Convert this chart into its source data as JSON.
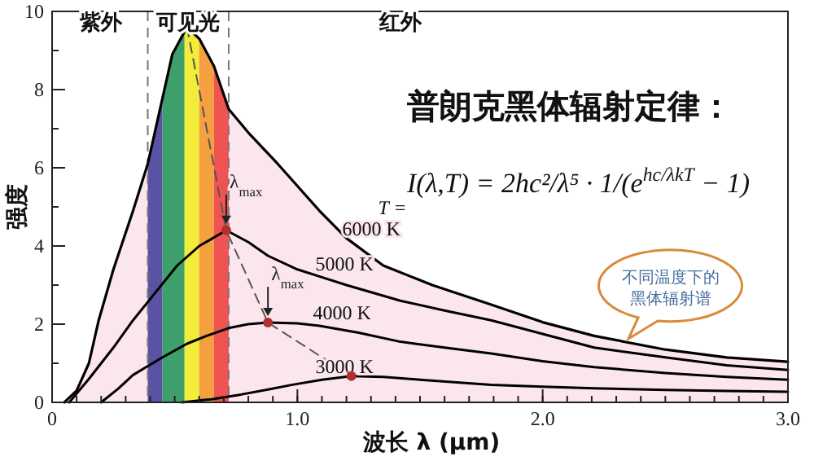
{
  "chart_data": {
    "type": "line",
    "title": "普朗克黑体辐射定律：",
    "xlabel": "波长 λ (μm)",
    "ylabel": "强度",
    "legend_title": "T =",
    "xlim": [
      0,
      3.0
    ],
    "xticks": [
      0,
      {
        "value": 1,
        "label": "1.0"
      },
      {
        "value": 2,
        "label": "2.0"
      },
      {
        "value": 3,
        "label": "3.0"
      }
    ],
    "ylim": [
      0,
      10
    ],
    "yticks": [
      0,
      2,
      4,
      6,
      8,
      10
    ],
    "series": [
      {
        "name": "6000 K",
        "type": "area",
        "color": "#000000",
        "x": [
          0.05,
          0.1,
          0.15,
          0.19,
          0.25,
          0.33,
          0.39,
          0.44,
          0.49,
          0.55,
          0.6,
          0.66,
          0.72,
          0.8,
          0.92,
          1.09,
          1.2,
          1.35,
          1.55,
          1.79,
          2.0,
          2.21,
          2.5,
          2.75,
          3.0
        ],
        "values": [
          0,
          0.3,
          1.0,
          2.1,
          3.4,
          4.9,
          6.1,
          7.5,
          8.9,
          9.6,
          9.3,
          8.6,
          7.5,
          6.9,
          6.1,
          4.9,
          4.2,
          3.5,
          3.0,
          2.5,
          2.05,
          1.7,
          1.35,
          1.15,
          1.04
        ]
      },
      {
        "name": "5000 K",
        "type": "line",
        "color": "#000000",
        "x": [
          0.07,
          0.15,
          0.25,
          0.33,
          0.42,
          0.51,
          0.6,
          0.71,
          0.8,
          0.88,
          1.0,
          1.1,
          1.2,
          1.42,
          1.6,
          1.79,
          2.0,
          2.21,
          2.5,
          2.75,
          3.0
        ],
        "values": [
          0,
          0.6,
          1.4,
          2.1,
          2.8,
          3.5,
          4.0,
          4.4,
          4.1,
          3.75,
          3.4,
          3.2,
          3.0,
          2.6,
          2.35,
          2.1,
          1.75,
          1.4,
          1.15,
          0.95,
          0.83
        ]
      },
      {
        "name": "4000 K",
        "type": "line",
        "color": "#000000",
        "x": [
          0.2,
          0.27,
          0.33,
          0.45,
          0.55,
          0.63,
          0.72,
          0.8,
          0.88,
          1.0,
          1.09,
          1.25,
          1.42,
          1.6,
          1.79,
          2.0,
          2.21,
          2.5,
          2.75,
          3.0
        ],
        "values": [
          0,
          0.35,
          0.7,
          1.15,
          1.5,
          1.7,
          1.9,
          2.0,
          2.04,
          2.02,
          1.96,
          1.78,
          1.55,
          1.4,
          1.25,
          1.05,
          0.9,
          0.75,
          0.65,
          0.58
        ]
      },
      {
        "name": "3000 K",
        "type": "line",
        "color": "#000000",
        "x": [
          0.53,
          0.65,
          0.77,
          0.88,
          0.98,
          1.1,
          1.22,
          1.35,
          1.5,
          1.79,
          2.0,
          2.21,
          2.5,
          2.75,
          3.0
        ],
        "values": [
          0,
          0.08,
          0.2,
          0.33,
          0.45,
          0.58,
          0.67,
          0.65,
          0.58,
          0.45,
          0.4,
          0.36,
          0.32,
          0.29,
          0.27
        ]
      },
      {
        "type": "line",
        "line_style": "dashed",
        "color": "#555555",
        "x": [
          0.55,
          0.71,
          0.88,
          1.22
        ],
        "values": [
          9.6,
          4.4,
          2.04,
          0.67
        ]
      },
      {
        "type": "scatter",
        "marker": "circle",
        "color": "#b03030",
        "x": [
          0.71,
          0.88,
          1.22
        ],
        "values": [
          4.4,
          2.04,
          0.67
        ]
      }
    ],
    "ref_lines": [
      {
        "axis": "x",
        "value": 0.39,
        "line_style": "dashed",
        "color": "#777777"
      },
      {
        "axis": "x",
        "value": 0.72,
        "line_style": "dashed",
        "color": "#777777"
      }
    ],
    "bands": [
      {
        "axis": "x",
        "from": 0.39,
        "to": 0.45,
        "color": "#5a52a3"
      },
      {
        "axis": "x",
        "from": 0.45,
        "to": 0.54,
        "color": "#3ea06c"
      },
      {
        "axis": "x",
        "from": 0.54,
        "to": 0.6,
        "color": "#f2ec3a"
      },
      {
        "axis": "x",
        "from": 0.6,
        "to": 0.66,
        "color": "#f5a040"
      },
      {
        "axis": "x",
        "from": 0.66,
        "to": 0.72,
        "color": "#ef5352"
      }
    ],
    "annotations": [
      {
        "text": "λ$_{max}$",
        "x": 0.71,
        "y": 4.4
      },
      {
        "text": "λ$_{max}$",
        "x": 0.88,
        "y": 2.04
      },
      "I(λ,T) = 2hc²/λ⁵ · 1/(e$^{hc/λkT}$ − 1)",
      "不同温度下的黑体辐射谱",
      "紫外",
      "可见光",
      "红外"
    ]
  }
}
